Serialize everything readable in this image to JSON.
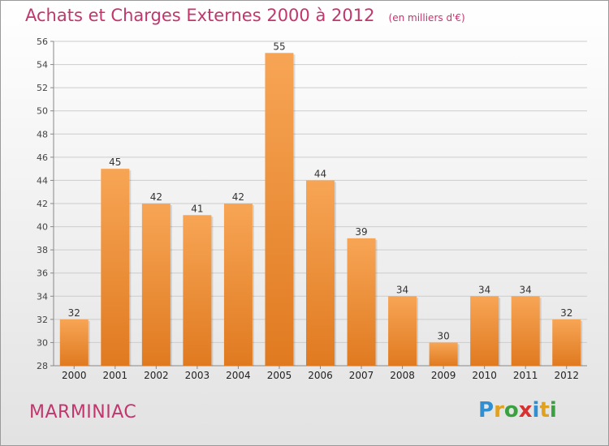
{
  "header": {
    "title": "Achats et Charges Externes 2000 à 2012",
    "unit": "(en milliers d'€)"
  },
  "footer": {
    "commune": "MARMINIAC",
    "brand": {
      "letters": [
        "P",
        "r",
        "o",
        "x",
        "i",
        "t",
        "i"
      ],
      "colors": [
        "#2f8fd0",
        "#e0a020",
        "#3aa040",
        "#d83030",
        "#2f8fd0",
        "#e0a020",
        "#3aa040"
      ]
    }
  },
  "colors": {
    "bar_light": "#f7a555",
    "bar_dark": "#e07a20",
    "grid": "#cccccc",
    "accent": "#c2356d"
  },
  "chart_data": {
    "type": "bar",
    "title": "Achats et Charges Externes 2000 à 2012",
    "categories": [
      "2000",
      "2001",
      "2002",
      "2003",
      "2004",
      "2005",
      "2006",
      "2007",
      "2008",
      "2009",
      "2010",
      "2011",
      "2012"
    ],
    "values": [
      32,
      45,
      42,
      41,
      42,
      55,
      44,
      39,
      34,
      30,
      34,
      34,
      32
    ],
    "ylim": [
      28,
      56
    ],
    "yticks": [
      28,
      30,
      32,
      34,
      36,
      38,
      40,
      42,
      44,
      46,
      48,
      50,
      52,
      54,
      56
    ],
    "grid": true,
    "xlabel": "",
    "ylabel": ""
  }
}
